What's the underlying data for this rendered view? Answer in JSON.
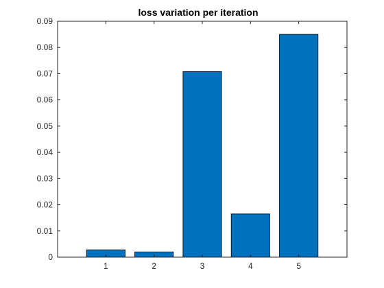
{
  "chart_data": {
    "type": "bar",
    "title": "loss variation per iteration",
    "xlabel": "",
    "ylabel": "",
    "categories": [
      "1",
      "2",
      "3",
      "4",
      "5"
    ],
    "values": [
      0.0028,
      0.002,
      0.0708,
      0.0165,
      0.085
    ],
    "xlim": [
      0,
      6
    ],
    "ylim": [
      0,
      0.09
    ],
    "yticks": [
      0,
      0.01,
      0.02,
      0.03,
      0.04,
      0.05,
      0.06,
      0.07,
      0.08,
      0.09
    ],
    "ytick_labels": [
      "0",
      "0.01",
      "0.02",
      "0.03",
      "0.04",
      "0.05",
      "0.06",
      "0.07",
      "0.08",
      "0.09"
    ],
    "xticks": [
      1,
      2,
      3,
      4,
      5
    ],
    "xtick_labels": [
      "1",
      "2",
      "3",
      "4",
      "5"
    ],
    "grid": false,
    "legend": "none",
    "bar_color": "#0072BD"
  }
}
